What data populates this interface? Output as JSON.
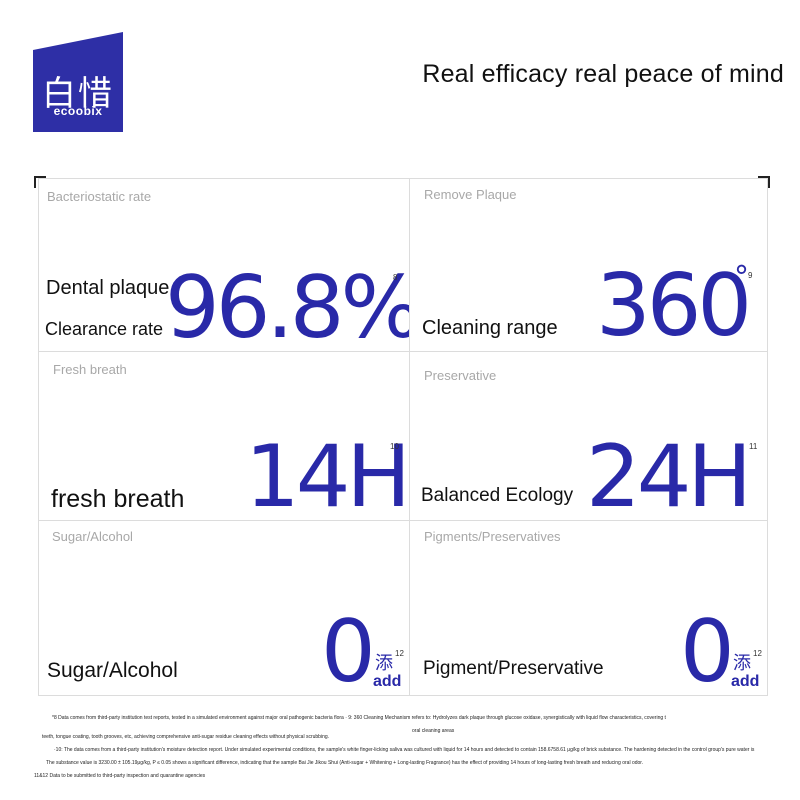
{
  "brand": {
    "cn_name": "白惜",
    "en_name": "ecoobix",
    "color": "#2e2fa6"
  },
  "headline": "Real efficacy real peace of mind",
  "accent_color": "#2929a8",
  "cells": [
    {
      "label": "Bacteriostatic rate",
      "title_line1": "Dental plaque",
      "title_line2": "Clearance rate",
      "value": "96.8%",
      "note": "8"
    },
    {
      "label": "Remove Plaque",
      "title_line1": "Cleaning range",
      "value": "360",
      "unit": "°",
      "note": "9"
    },
    {
      "label": "Fresh breath",
      "title_line1": "fresh breath",
      "value": "14H",
      "note": "10"
    },
    {
      "label": "Preservative",
      "title_line1": "Balanced Ecology",
      "value": "24H",
      "note": "11"
    },
    {
      "label": "Sugar/Alcohol",
      "title_line1": "Sugar/Alcohol",
      "value": "0",
      "add_cn": "添",
      "add_en": "add",
      "note": "12"
    },
    {
      "label": "Pigments/Preservatives",
      "title_line1": "Pigment/Preservative",
      "value": "0",
      "add_cn": "添",
      "add_en": "add",
      "note": "12"
    }
  ],
  "footnotes": [
    "*8 Data comes from third-party institution test reports, tested in a simulated environment against major oral pathogenic bacteria flora · 9: 360 Cleaning Mechanism refers to: Hydrolyzes dark plaque through glucose oxidase, synergistically with liquid flow characteristics, covering t",
    "oral cleaning areas",
    "teeth, tongue coating, tooth grooves, etc, achieving comprehensive anti-sugar residue cleaning effects without physical scrubbing.",
    "·10: The data comes from a third-party institution's moisture detection report. Under simulated experimental conditions, the sample's white finger-licking saliva was cultured with liquid for 14 hours and detected to contain 158.6758.61 μg/kg of brick substance. The hardening detected in the control group's pure water is",
    "The substance value is 3230.00 ± 105.19μg/kg, P ≤ 0.05 shows a significant difference, indicating that the sample Bai Jie Jikou Shui (Anti-sugar + Whitening + Long-lasting Fragrance) has the effect of providing 14 hours of long-lasting fresh breath and reducing oral odor.",
    "11&12 Data to be submitted to third-party inspection and quarantine agencies"
  ]
}
